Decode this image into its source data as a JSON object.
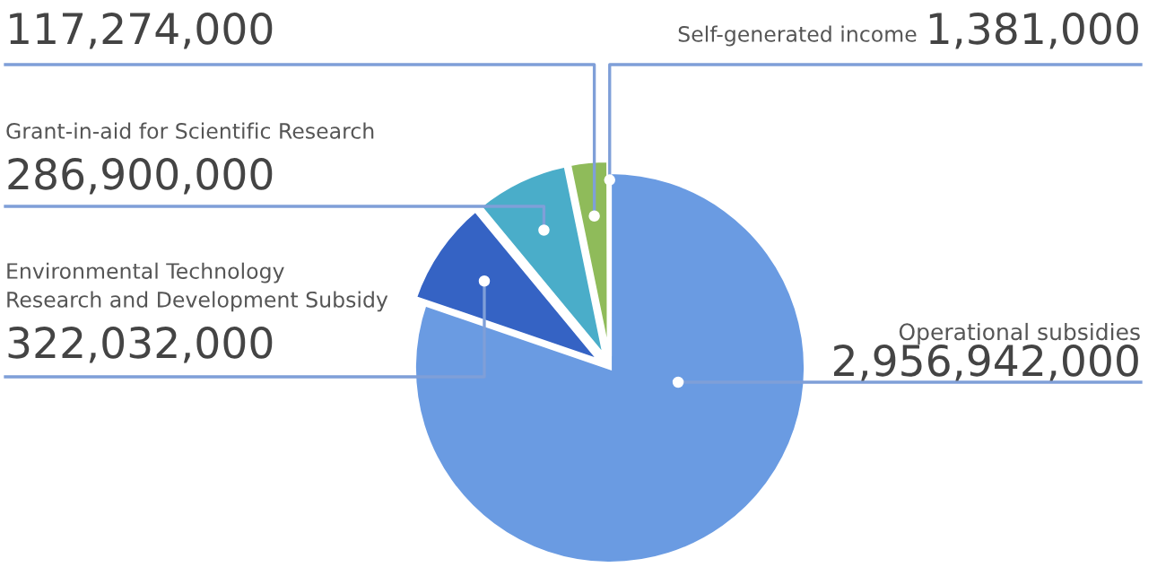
{
  "chart_data": {
    "type": "pie",
    "categories": [
      "Operational subsidies",
      "Environmental Technology\nResearch and Development Subsidy",
      "Grant-in-aid for Scientific Research",
      null,
      "Self-generated income"
    ],
    "values": [
      2956942000,
      322032000,
      286900000,
      117274000,
      1381000
    ],
    "value_labels": [
      "2,956,942,000",
      "322,032,000",
      "286,900,000",
      "117,274,000",
      "1,381,000"
    ],
    "colors": [
      "#6a9be2",
      "#3563c4",
      "#4aadc9",
      "#8fbb5a",
      "#a9cb62"
    ]
  }
}
